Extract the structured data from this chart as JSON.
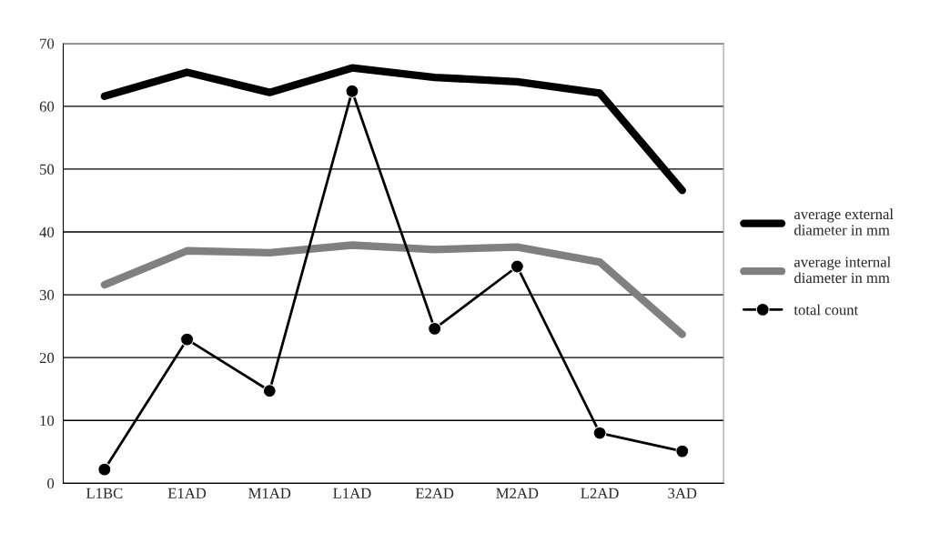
{
  "chart_data": {
    "type": "line",
    "categories": [
      "L1BC",
      "E1AD",
      "M1AD",
      "L1AD",
      "E2AD",
      "M2AD",
      "L2AD",
      "3AD"
    ],
    "series": [
      {
        "name": "average external diameter in mm",
        "color": "#000000",
        "marker": "none",
        "values": [
          61.6,
          65.4,
          62.2,
          66.1,
          64.6,
          63.9,
          62.1,
          46.6
        ]
      },
      {
        "name": "average internal diameter in mm",
        "color": "#808080",
        "marker": "none",
        "values": [
          31.6,
          37.0,
          36.7,
          37.9,
          37.2,
          37.6,
          35.2,
          23.7
        ]
      },
      {
        "name": "total count",
        "color": "#000000",
        "marker": "circle",
        "values": [
          2.2,
          22.9,
          14.7,
          62.4,
          24.6,
          34.5,
          8.0,
          5.1
        ]
      }
    ],
    "ylim": [
      0,
      70
    ],
    "yticks": [
      0,
      10,
      20,
      30,
      40,
      50,
      60,
      70
    ],
    "grid": "y",
    "legend": "right"
  }
}
